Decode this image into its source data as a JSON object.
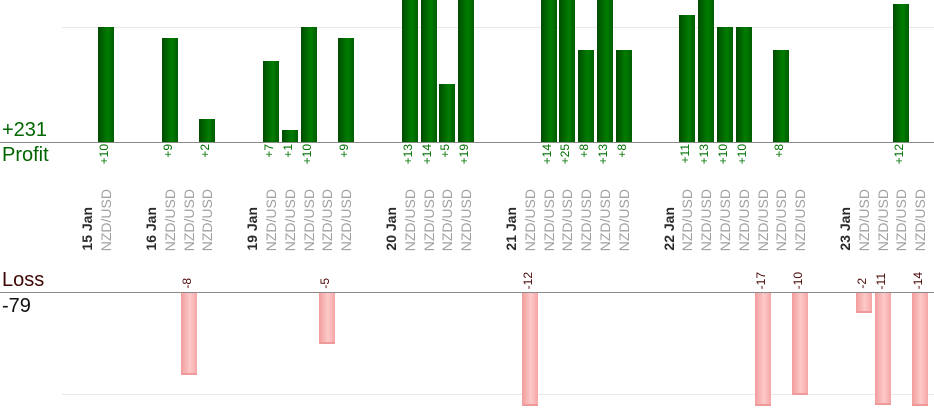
{
  "labels": {
    "profit_total": "+231",
    "profit_axis": "Profit",
    "loss_axis": "Loss",
    "loss_total": "-79"
  },
  "colors": {
    "profit_text": "#006600",
    "profit_value_text": "#007200",
    "loss_text": "#3f0606",
    "loss_total_text": "#111111",
    "loss_value_text": "#4d0a0a",
    "date_text": "#2a2a2a",
    "symbol_text": "#a0a0a0",
    "axis_line": "#8a8a8a",
    "gridline": "#e9e9e9",
    "profit_bar": [
      "#004a00",
      "#007e00",
      "#005c00"
    ],
    "loss_bar": [
      "#f29c9c",
      "#fdc9c9",
      "#f5a6a6"
    ],
    "loss_bar_edge": "#ef9a9a"
  },
  "chart_data": {
    "type": "bar",
    "orientation": "vertical",
    "symbol": "NZD/USD",
    "panels": [
      {
        "name": "profit",
        "axis_label": "Profit",
        "total": 231,
        "gridline_value": 10
      },
      {
        "name": "loss",
        "axis_label": "Loss",
        "total": -79,
        "gridline_value": -10
      }
    ],
    "days": [
      {
        "date": "15 Jan",
        "trades": [
          {
            "symbol": "NZD/USD",
            "value": 10
          }
        ]
      },
      {
        "date": "16 Jan",
        "trades": [
          {
            "symbol": "NZD/USD",
            "value": 9
          },
          {
            "symbol": "NZD/USD",
            "value": -8
          },
          {
            "symbol": "NZD/USD",
            "value": 2
          }
        ]
      },
      {
        "date": "19 Jan",
        "trades": [
          {
            "symbol": "NZD/USD",
            "value": 7
          },
          {
            "symbol": "NZD/USD",
            "value": 1
          },
          {
            "symbol": "NZD/USD",
            "value": 10
          },
          {
            "symbol": "NZD/USD",
            "value": -5
          },
          {
            "symbol": "NZD/USD",
            "value": 9
          }
        ]
      },
      {
        "date": "20 Jan",
        "trades": [
          {
            "symbol": "NZD/USD",
            "value": 13
          },
          {
            "symbol": "NZD/USD",
            "value": 14
          },
          {
            "symbol": "NZD/USD",
            "value": 5
          },
          {
            "symbol": "NZD/USD",
            "value": 19
          }
        ]
      },
      {
        "date": "21 Jan",
        "trades": [
          {
            "symbol": "NZD/USD",
            "value": -12
          },
          {
            "symbol": "NZD/USD",
            "value": 14
          },
          {
            "symbol": "NZD/USD",
            "value": 25
          },
          {
            "symbol": "NZD/USD",
            "value": 8
          },
          {
            "symbol": "NZD/USD",
            "value": 13
          },
          {
            "symbol": "NZD/USD",
            "value": 8
          }
        ]
      },
      {
        "date": "22 Jan",
        "trades": [
          {
            "symbol": "NZD/USD",
            "value": 11
          },
          {
            "symbol": "NZD/USD",
            "value": 13
          },
          {
            "symbol": "NZD/USD",
            "value": 10
          },
          {
            "symbol": "NZD/USD",
            "value": 10
          },
          {
            "symbol": "NZD/USD",
            "value": -17
          },
          {
            "symbol": "NZD/USD",
            "value": 8
          },
          {
            "symbol": "NZD/USD",
            "value": -10
          }
        ]
      },
      {
        "date": "23 Jan",
        "trades": [
          {
            "symbol": "NZD/USD",
            "value": -2
          },
          {
            "symbol": "NZD/USD",
            "value": -11
          },
          {
            "symbol": "NZD/USD",
            "value": 12
          },
          {
            "symbol": "NZD/USD",
            "value": -14
          }
        ]
      }
    ]
  }
}
